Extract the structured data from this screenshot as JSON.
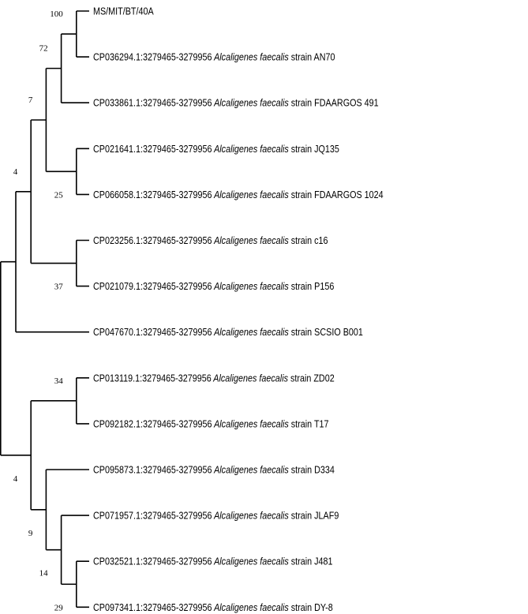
{
  "tree": {
    "label_color": "#000000",
    "line_color": "#000000",
    "root": {
      "children": [
        {
          "branch_length": 1,
          "bootstrap": null,
          "children": [
            {
              "branch_length": 1,
              "bootstrap": "4",
              "label_position": "above",
              "children": [
                {
                  "branch_length": 1,
                  "bootstrap": "7",
                  "label_position": "above",
                  "children": [
                    {
                      "branch_length": 1,
                      "bootstrap": "72",
                      "label_position": "above",
                      "children": [
                        {
                          "branch_length": 1,
                          "bootstrap": "100",
                          "label_position": "above",
                          "children": [
                            {
                              "accession": "MS/MIT/BT/40A",
                              "species": "",
                              "strain": ""
                            },
                            {
                              "accession": "CP036294.1:3279465-3279956",
                              "species": "Alcaligenes faecalis",
                              "strain": "strain AN70"
                            }
                          ]
                        },
                        {
                          "accession": "CP033861.1:3279465-3279956",
                          "species": "Alcaligenes faecalis",
                          "strain": "strain FDAARGOS 491"
                        }
                      ]
                    },
                    {
                      "branch_length": 2,
                      "bootstrap": "25",
                      "label_position": "below",
                      "children": [
                        {
                          "accession": "CP021641.1:3279465-3279956",
                          "species": "Alcaligenes faecalis",
                          "strain": "strain JQ135"
                        },
                        {
                          "accession": "CP066058.1:3279465-3279956",
                          "species": "Alcaligenes faecalis",
                          "strain": "strain FDAARGOS 1024"
                        }
                      ]
                    }
                  ]
                },
                {
                  "branch_length": 3,
                  "bootstrap": "37",
                  "label_position": "below",
                  "children": [
                    {
                      "accession": "CP023256.1:3279465-3279956",
                      "species": "Alcaligenes faecalis",
                      "strain": "strain c16"
                    },
                    {
                      "accession": "CP021079.1:3279465-3279956",
                      "species": "Alcaligenes faecalis",
                      "strain": "strain P156"
                    }
                  ]
                }
              ]
            },
            {
              "accession": "CP047670.1:3279465-3279956",
              "species": "Alcaligenes faecalis",
              "strain": "strain SCSIO B001"
            }
          ]
        },
        {
          "branch_length": 2,
          "bootstrap": "4",
          "label_position": "below",
          "children": [
            {
              "branch_length": 3,
              "bootstrap": "34",
              "label_position": "above",
              "children": [
                {
                  "accession": "CP013119.1:3279465-3279956",
                  "species": "Alcaligenes faecalis",
                  "strain": "strain ZD02"
                },
                {
                  "accession": "CP092182.1:3279465-3279956",
                  "species": "Alcaligenes faecalis",
                  "strain": "strain T17"
                }
              ]
            },
            {
              "branch_length": 1,
              "bootstrap": "9",
              "label_position": "below",
              "children": [
                {
                  "accession": "CP095873.1:3279465-3279956",
                  "species": "Alcaligenes faecalis",
                  "strain": "strain D334"
                },
                {
                  "branch_length": 1,
                  "bootstrap": "14",
                  "label_position": "below",
                  "children": [
                    {
                      "accession": "CP071957.1:3279465-3279956",
                      "species": "Alcaligenes faecalis",
                      "strain": "strain JLAF9"
                    },
                    {
                      "branch_length": 1,
                      "bootstrap": "29",
                      "label_position": "below",
                      "children": [
                        {
                          "accession": "CP032521.1:3279465-3279956",
                          "species": "Alcaligenes faecalis",
                          "strain": "strain J481"
                        },
                        {
                          "accession": "CP097341.1:3279465-3279956",
                          "species": "Alcaligenes faecalis",
                          "strain": "strain DY-8"
                        }
                      ]
                    }
                  ]
                }
              ]
            }
          ]
        }
      ]
    }
  }
}
